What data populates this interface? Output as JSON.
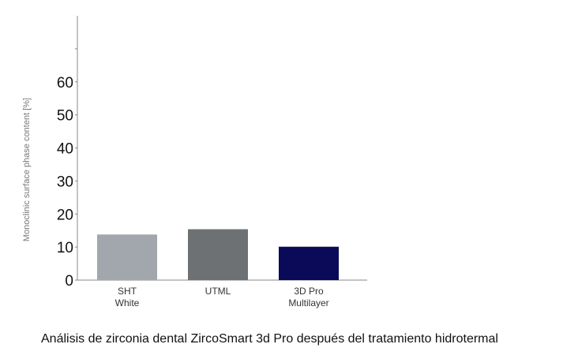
{
  "caption": "Análisis de zirconia dental ZircoSmart 3d Pro después del tratamiento hidrotermal",
  "chart_data": {
    "type": "bar",
    "ylabel": "Monoclinic surface phase content [%]",
    "xlabel": "",
    "ylim": [
      0,
      80
    ],
    "yticks": [
      0,
      10,
      20,
      30,
      40,
      50,
      60
    ],
    "grid": false,
    "categories": [
      [
        "SHT",
        "White"
      ],
      [
        "UTML"
      ],
      [
        "3D Pro",
        "Multilayer"
      ]
    ],
    "values": [
      13.8,
      15.4,
      10.1
    ],
    "colors": [
      "#a1a7ad",
      "#6e7174",
      "#0b0a58"
    ]
  }
}
